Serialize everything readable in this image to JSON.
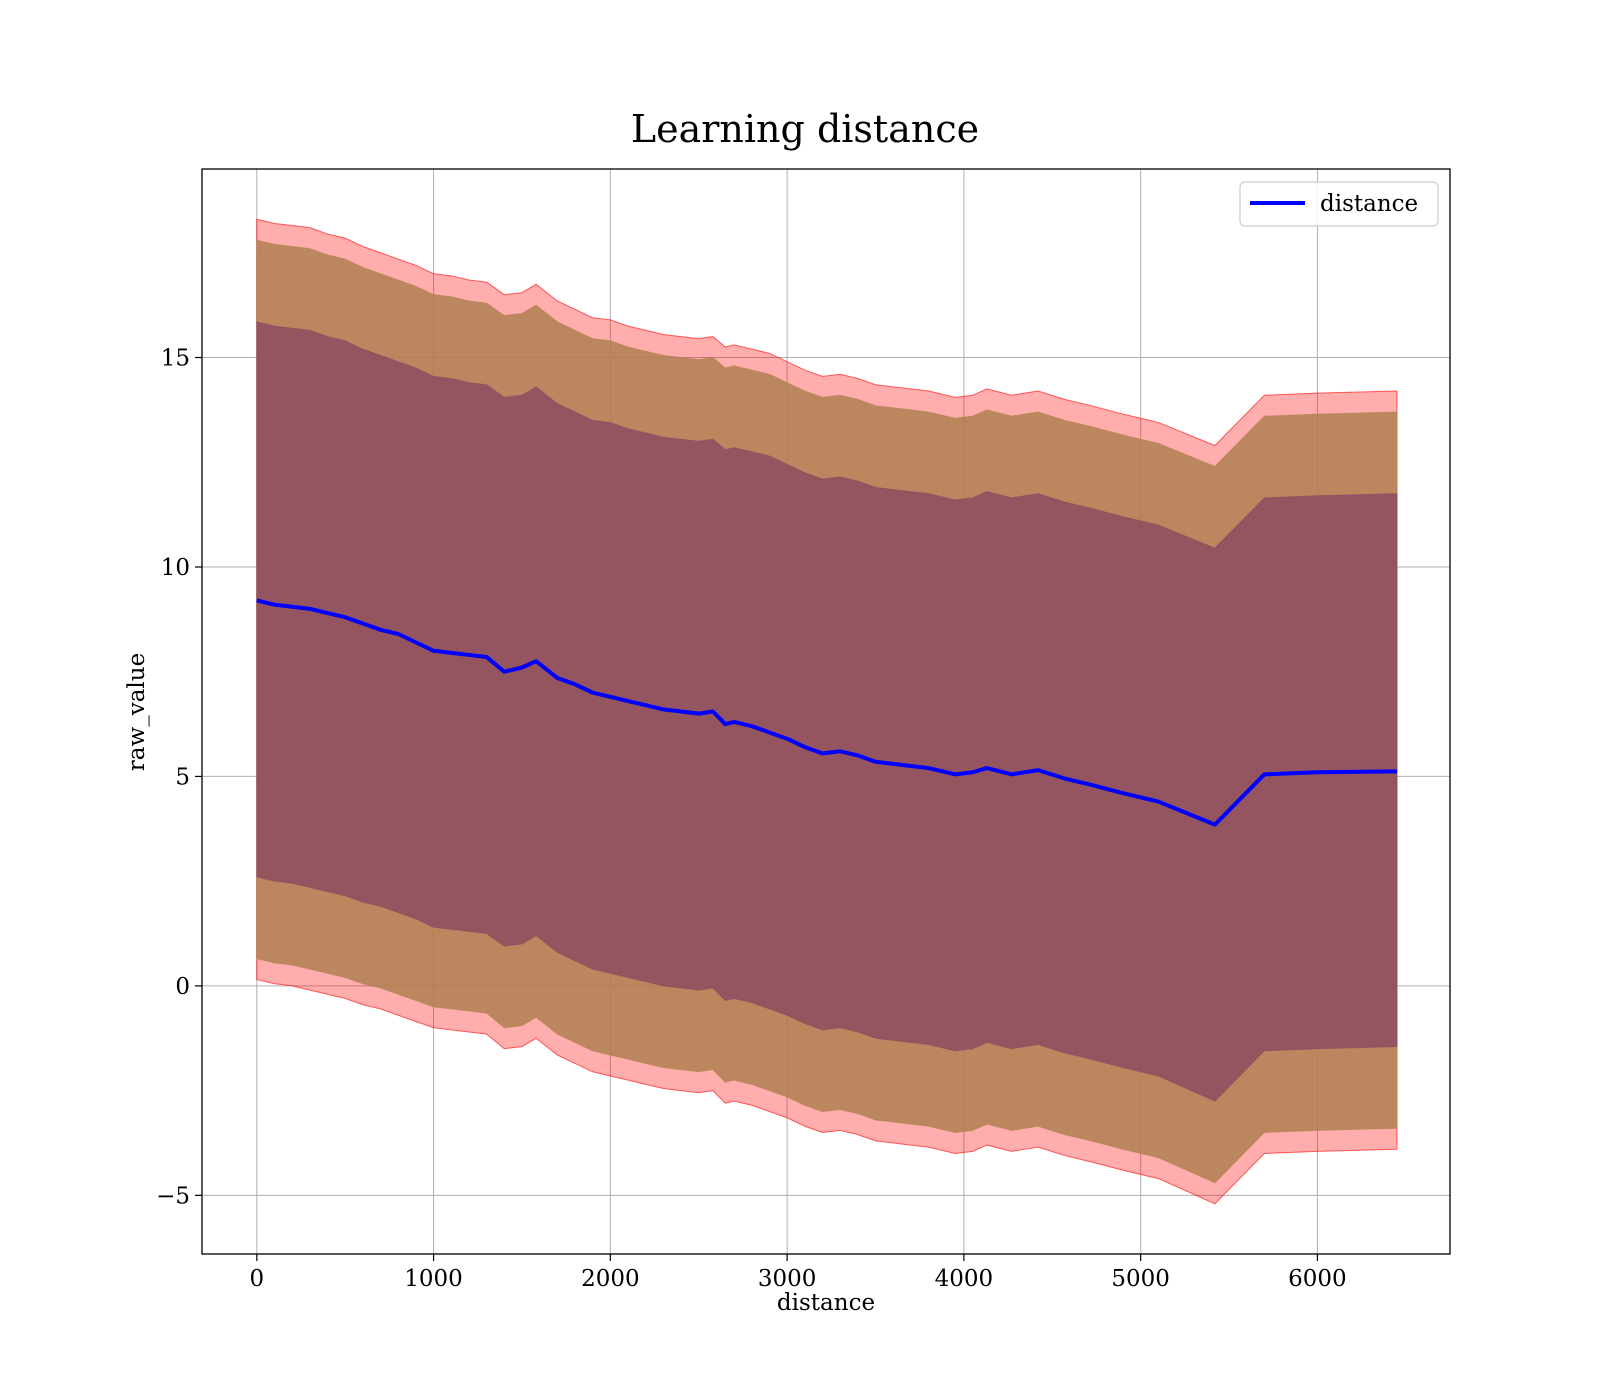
{
  "chart_data": {
    "type": "line",
    "title": "Learning distance",
    "xlabel": "distance",
    "ylabel": "raw_value",
    "xlim": [
      -310,
      6750
    ],
    "ylim": [
      -6.4,
      19.5
    ],
    "xticks": [
      0,
      1000,
      2000,
      3000,
      4000,
      5000,
      6000
    ],
    "yticks": [
      -5,
      0,
      5,
      10,
      15
    ],
    "xtick_labels": [
      "0",
      "1000",
      "2000",
      "3000",
      "4000",
      "5000",
      "6000"
    ],
    "ytick_labels": [
      "−5",
      "0",
      "5",
      "10",
      "15"
    ],
    "grid": true,
    "legend": {
      "placement": "top-right",
      "entries": [
        "distance"
      ]
    },
    "series": [
      {
        "name": "distance",
        "color": "#0000ff",
        "x": [
          0,
          100,
          200,
          300,
          400,
          500,
          600,
          700,
          800,
          900,
          1000,
          1100,
          1200,
          1300,
          1400,
          1500,
          1580,
          1700,
          1800,
          1900,
          2000,
          2100,
          2200,
          2300,
          2400,
          2500,
          2580,
          2650,
          2700,
          2800,
          2900,
          3000,
          3100,
          3200,
          3300,
          3400,
          3500,
          3600,
          3700,
          3800,
          3950,
          4050,
          4130,
          4270,
          4420,
          4570,
          4720,
          4900,
          5100,
          5420,
          5700,
          6000,
          6450
        ],
        "y": [
          9.2,
          9.1,
          9.05,
          9.0,
          8.9,
          8.8,
          8.65,
          8.5,
          8.4,
          8.2,
          8.0,
          7.95,
          7.9,
          7.85,
          7.5,
          7.6,
          7.75,
          7.35,
          7.2,
          7.0,
          6.9,
          6.8,
          6.7,
          6.6,
          6.55,
          6.5,
          6.55,
          6.25,
          6.3,
          6.2,
          6.05,
          5.9,
          5.7,
          5.55,
          5.6,
          5.5,
          5.35,
          5.3,
          5.25,
          5.2,
          5.05,
          5.1,
          5.2,
          5.05,
          5.15,
          4.95,
          4.8,
          4.6,
          4.4,
          3.85,
          5.05,
          5.1,
          5.12
        ]
      }
    ],
    "bands": [
      {
        "description_role": "outer",
        "color": "#ff0000",
        "opacity": 0.32,
        "x": [
          0,
          100,
          200,
          300,
          400,
          500,
          600,
          700,
          800,
          900,
          1000,
          1100,
          1200,
          1300,
          1400,
          1500,
          1580,
          1700,
          1800,
          1900,
          2000,
          2100,
          2200,
          2300,
          2400,
          2500,
          2580,
          2650,
          2700,
          2800,
          2900,
          3000,
          3100,
          3200,
          3300,
          3400,
          3500,
          3600,
          3700,
          3800,
          3950,
          4050,
          4130,
          4270,
          4420,
          4570,
          4720,
          4900,
          5100,
          5420,
          5700,
          6000,
          6450
        ],
        "upper": [
          18.3,
          18.2,
          18.15,
          18.1,
          17.95,
          17.85,
          17.65,
          17.5,
          17.35,
          17.2,
          17.0,
          16.95,
          16.85,
          16.8,
          16.5,
          16.55,
          16.75,
          16.35,
          16.15,
          15.95,
          15.9,
          15.75,
          15.65,
          15.55,
          15.5,
          15.45,
          15.5,
          15.25,
          15.3,
          15.2,
          15.1,
          14.9,
          14.7,
          14.55,
          14.6,
          14.5,
          14.35,
          14.3,
          14.25,
          14.2,
          14.05,
          14.1,
          14.25,
          14.1,
          14.2,
          14.0,
          13.85,
          13.65,
          13.45,
          12.9,
          14.1,
          14.15,
          14.2
        ],
        "lower": [
          0.15,
          0.05,
          0.0,
          -0.1,
          -0.2,
          -0.3,
          -0.45,
          -0.55,
          -0.7,
          -0.85,
          -1.0,
          -1.05,
          -1.1,
          -1.15,
          -1.5,
          -1.45,
          -1.25,
          -1.65,
          -1.85,
          -2.05,
          -2.15,
          -2.25,
          -2.35,
          -2.45,
          -2.5,
          -2.55,
          -2.5,
          -2.8,
          -2.75,
          -2.85,
          -3.0,
          -3.15,
          -3.35,
          -3.5,
          -3.45,
          -3.55,
          -3.7,
          -3.75,
          -3.8,
          -3.85,
          -4.0,
          -3.95,
          -3.8,
          -3.95,
          -3.85,
          -4.05,
          -4.2,
          -4.4,
          -4.6,
          -5.2,
          -4.0,
          -3.95,
          -3.9
        ]
      },
      {
        "description_role": "middle",
        "color": "#b08050",
        "opacity": 0.85,
        "x": [
          0,
          100,
          200,
          300,
          400,
          500,
          600,
          700,
          800,
          900,
          1000,
          1100,
          1200,
          1300,
          1400,
          1500,
          1580,
          1700,
          1800,
          1900,
          2000,
          2100,
          2200,
          2300,
          2400,
          2500,
          2580,
          2650,
          2700,
          2800,
          2900,
          3000,
          3100,
          3200,
          3300,
          3400,
          3500,
          3600,
          3700,
          3800,
          3950,
          4050,
          4130,
          4270,
          4420,
          4570,
          4720,
          4900,
          5100,
          5420,
          5700,
          6000,
          6450
        ],
        "upper": [
          17.8,
          17.7,
          17.65,
          17.6,
          17.45,
          17.35,
          17.15,
          17.0,
          16.85,
          16.7,
          16.5,
          16.45,
          16.35,
          16.3,
          16.0,
          16.05,
          16.25,
          15.85,
          15.65,
          15.45,
          15.4,
          15.25,
          15.15,
          15.05,
          15.0,
          14.95,
          15.0,
          14.75,
          14.8,
          14.7,
          14.6,
          14.4,
          14.2,
          14.05,
          14.1,
          14.0,
          13.85,
          13.8,
          13.75,
          13.7,
          13.55,
          13.6,
          13.75,
          13.6,
          13.7,
          13.5,
          13.35,
          13.15,
          12.95,
          12.4,
          13.6,
          13.65,
          13.7
        ],
        "lower": [
          0.65,
          0.55,
          0.5,
          0.4,
          0.3,
          0.2,
          0.05,
          -0.05,
          -0.2,
          -0.35,
          -0.5,
          -0.55,
          -0.6,
          -0.65,
          -1.0,
          -0.95,
          -0.75,
          -1.15,
          -1.35,
          -1.55,
          -1.65,
          -1.75,
          -1.85,
          -1.95,
          -2.0,
          -2.05,
          -2.0,
          -2.3,
          -2.25,
          -2.35,
          -2.5,
          -2.65,
          -2.85,
          -3.0,
          -2.95,
          -3.05,
          -3.2,
          -3.25,
          -3.3,
          -3.35,
          -3.5,
          -3.45,
          -3.3,
          -3.45,
          -3.35,
          -3.55,
          -3.7,
          -3.9,
          -4.1,
          -4.7,
          -3.5,
          -3.45,
          -3.4
        ]
      },
      {
        "description_role": "inner",
        "color": "#8b4a62",
        "opacity": 0.82,
        "x": [
          0,
          100,
          200,
          300,
          400,
          500,
          600,
          700,
          800,
          900,
          1000,
          1100,
          1200,
          1300,
          1400,
          1500,
          1580,
          1700,
          1800,
          1900,
          2000,
          2100,
          2200,
          2300,
          2400,
          2500,
          2580,
          2650,
          2700,
          2800,
          2900,
          3000,
          3100,
          3200,
          3300,
          3400,
          3500,
          3600,
          3700,
          3800,
          3950,
          4050,
          4130,
          4270,
          4420,
          4570,
          4720,
          4900,
          5100,
          5420,
          5700,
          6000,
          6450
        ],
        "upper": [
          15.85,
          15.75,
          15.7,
          15.65,
          15.5,
          15.4,
          15.2,
          15.05,
          14.9,
          14.75,
          14.55,
          14.5,
          14.4,
          14.35,
          14.05,
          14.1,
          14.3,
          13.9,
          13.7,
          13.5,
          13.45,
          13.3,
          13.2,
          13.1,
          13.05,
          13.0,
          13.05,
          12.8,
          12.85,
          12.75,
          12.65,
          12.45,
          12.25,
          12.1,
          12.15,
          12.05,
          11.9,
          11.85,
          11.8,
          11.75,
          11.6,
          11.65,
          11.8,
          11.65,
          11.75,
          11.55,
          11.4,
          11.2,
          11.0,
          10.45,
          11.65,
          11.7,
          11.75
        ],
        "lower": [
          2.6,
          2.5,
          2.45,
          2.35,
          2.25,
          2.15,
          2.0,
          1.9,
          1.75,
          1.6,
          1.4,
          1.35,
          1.3,
          1.25,
          0.95,
          1.0,
          1.2,
          0.8,
          0.6,
          0.4,
          0.3,
          0.2,
          0.1,
          0.0,
          -0.05,
          -0.1,
          -0.05,
          -0.35,
          -0.3,
          -0.4,
          -0.55,
          -0.7,
          -0.9,
          -1.05,
          -1.0,
          -1.1,
          -1.25,
          -1.3,
          -1.35,
          -1.4,
          -1.55,
          -1.5,
          -1.35,
          -1.5,
          -1.4,
          -1.6,
          -1.75,
          -1.95,
          -2.15,
          -2.75,
          -1.55,
          -1.5,
          -1.45
        ]
      }
    ]
  }
}
